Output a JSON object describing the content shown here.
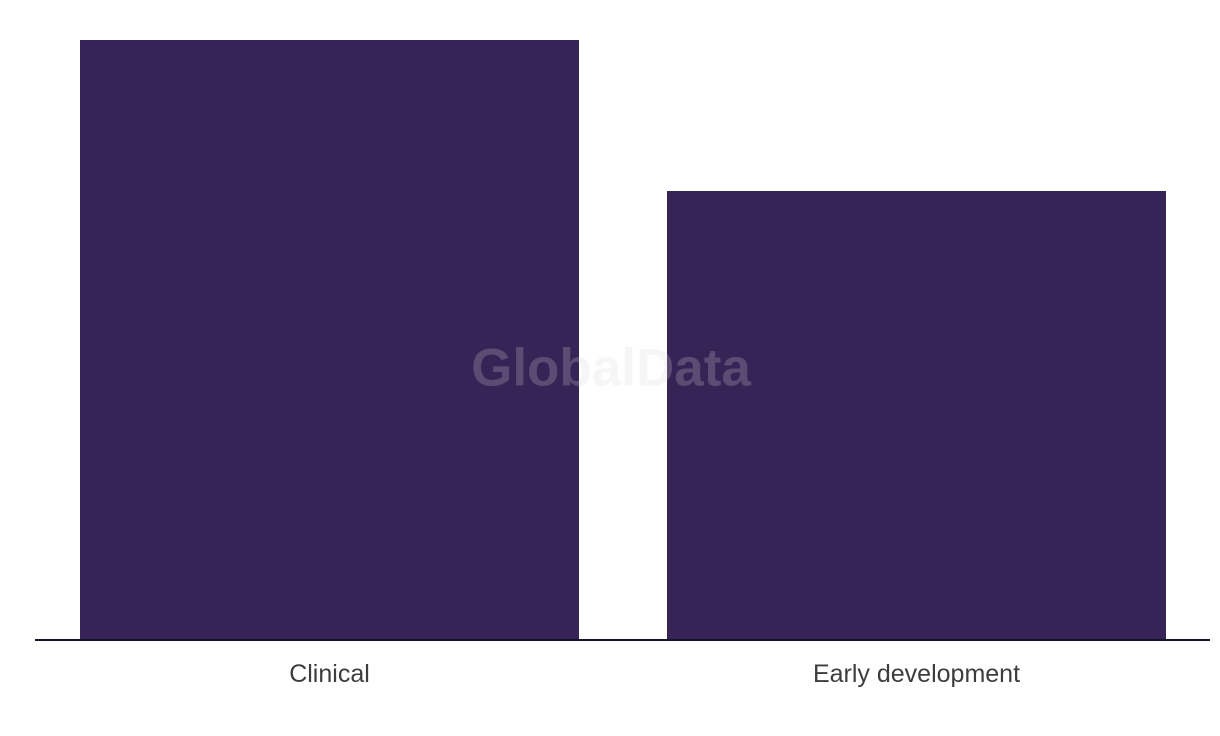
{
  "page": {
    "background": "#ffffff"
  },
  "watermark": {
    "text": "GlobalData",
    "color": "#d8d8dc",
    "opacity": 0.22
  },
  "chart_data": {
    "type": "bar",
    "categories": [
      "Clinical",
      "Early development"
    ],
    "values": [
      599,
      448
    ],
    "values_note": "no value axis, tick labels or data labels are visible; values are relative bar heights in pixels",
    "title": "",
    "xlabel": "",
    "ylabel": "",
    "legend": "none",
    "grid": false,
    "bar_color": "#362456",
    "axis_line_color": "#15152a",
    "category_label_color": "#3d3d3d"
  }
}
